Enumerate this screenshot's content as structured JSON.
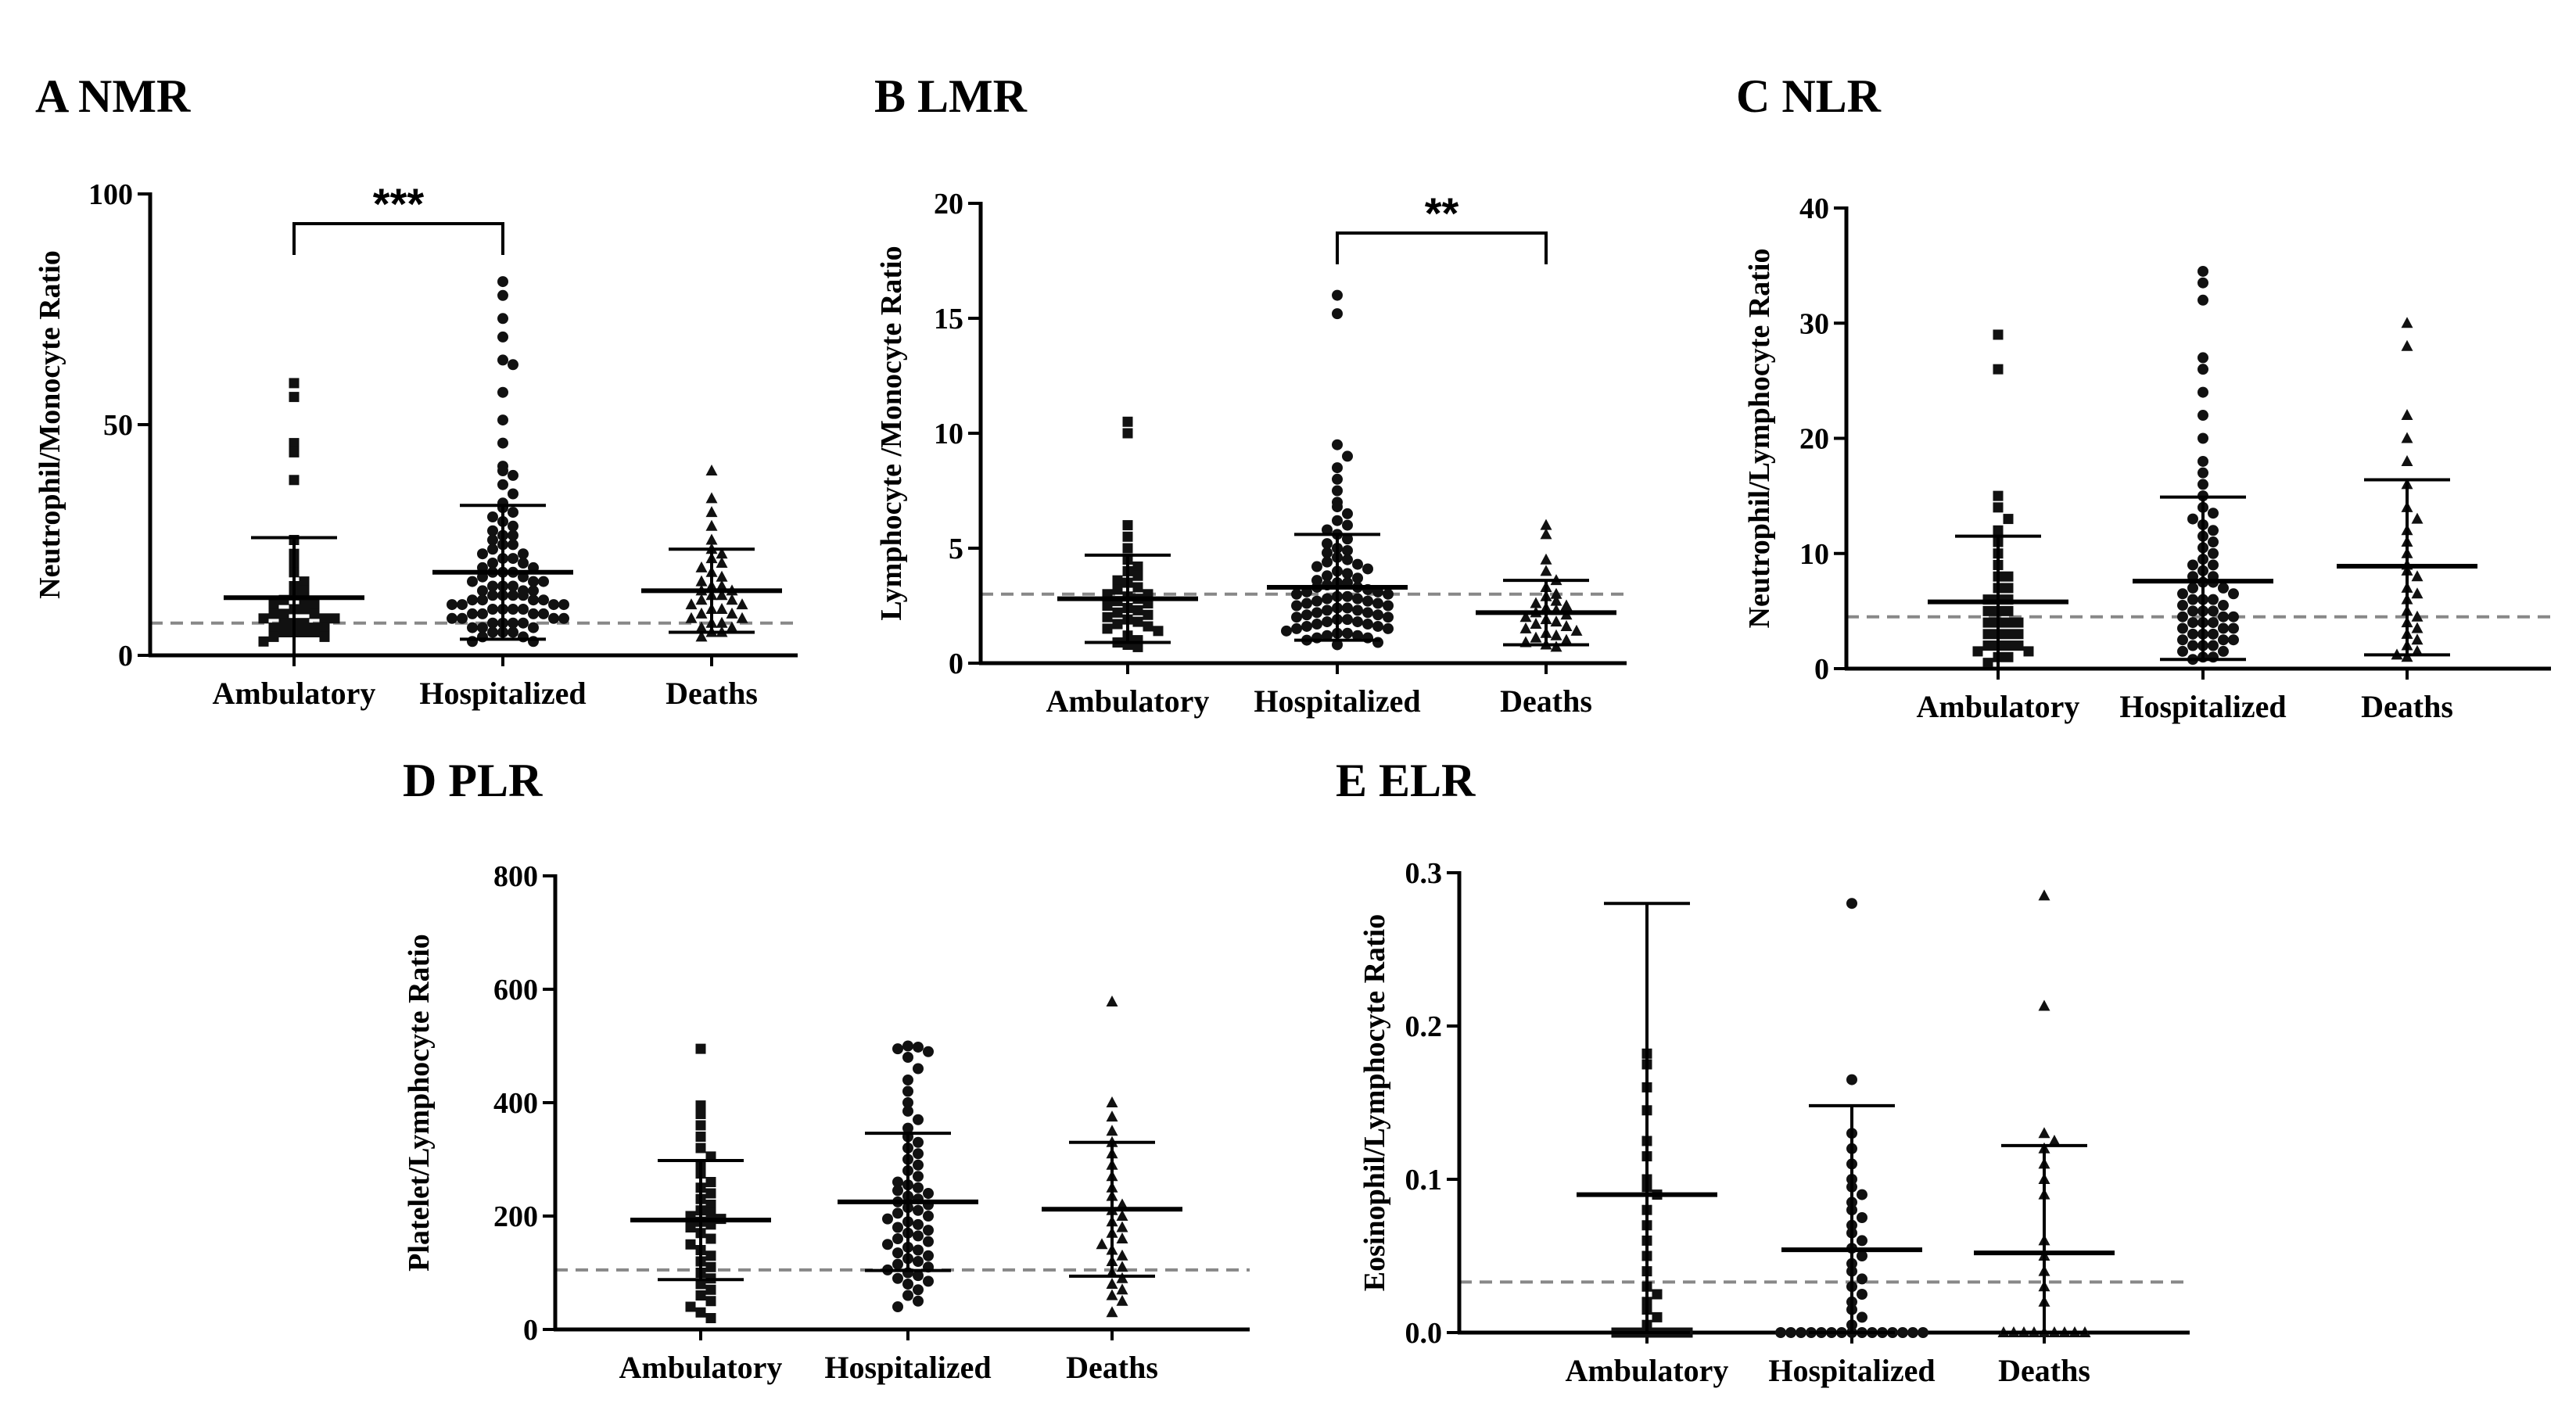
{
  "chart_data": [
    {
      "id": "nmr",
      "type": "scatter",
      "title": "A NMR",
      "ylabel": "Neutrophil/Monocyte Ratio",
      "ylim": [
        0,
        100
      ],
      "yticks": [
        0,
        50,
        100
      ],
      "reference_line": 7,
      "categories": [
        "Ambulatory",
        "Hospitalized",
        "Deaths"
      ],
      "markers": [
        "square",
        "circle",
        "triangle"
      ],
      "summary": [
        {
          "mean": 12.5,
          "upper": 25.5,
          "lower": 0
        },
        {
          "mean": 18,
          "upper": 32.5,
          "lower": 3.5
        },
        {
          "mean": 14,
          "upper": 23,
          "lower": 5
        }
      ],
      "series": [
        {
          "name": "Ambulatory",
          "values": [
            59,
            56,
            46,
            44,
            38,
            25,
            22,
            20,
            18,
            16,
            15,
            14,
            13,
            12,
            12,
            11,
            11,
            10,
            10,
            9,
            9,
            9,
            8,
            8,
            8,
            7,
            7,
            7,
            6,
            6,
            6,
            5,
            5,
            5,
            5,
            4,
            4,
            3
          ]
        },
        {
          "name": "Hospitalized",
          "values": [
            81,
            78,
            73,
            69,
            64,
            63,
            57,
            51,
            46,
            41,
            40,
            39,
            37,
            35,
            33,
            32,
            31,
            30,
            29,
            28,
            27,
            26,
            26,
            25,
            24,
            24,
            23,
            22,
            22,
            21,
            21,
            20,
            20,
            19,
            19,
            18,
            18,
            18,
            17,
            17,
            16,
            16,
            16,
            15,
            15,
            15,
            14,
            14,
            14,
            13,
            13,
            13,
            13,
            12,
            12,
            12,
            12,
            11,
            11,
            11,
            11,
            10,
            10,
            10,
            10,
            9,
            9,
            9,
            9,
            8,
            8,
            8,
            8,
            7,
            7,
            7,
            7,
            6,
            6,
            6,
            5,
            5,
            5,
            4,
            4,
            3,
            3
          ]
        },
        {
          "name": "Deaths",
          "values": [
            40,
            34,
            31,
            28,
            25,
            23,
            22,
            21,
            20,
            19,
            18,
            17,
            16,
            15,
            15,
            14,
            14,
            13,
            13,
            12,
            12,
            11,
            11,
            10,
            10,
            9,
            9,
            8,
            8,
            7,
            7,
            6,
            6,
            5,
            5,
            4
          ]
        }
      ],
      "significance": [
        {
          "from": 0,
          "to": 1,
          "label": "***"
        }
      ]
    },
    {
      "id": "lmr",
      "type": "scatter",
      "title": "B LMR",
      "ylabel": "Lymphocyte /Monocyte Ratio",
      "ylim": [
        0,
        20
      ],
      "yticks": [
        0,
        5,
        10,
        15,
        20
      ],
      "reference_line": 3,
      "categories": [
        "Ambulatory",
        "Hospitalized",
        "Deaths"
      ],
      "markers": [
        "square",
        "circle",
        "triangle"
      ],
      "summary": [
        {
          "mean": 2.8,
          "upper": 4.7,
          "lower": 0.9
        },
        {
          "mean": 3.3,
          "upper": 5.6,
          "lower": 1
        },
        {
          "mean": 2.2,
          "upper": 3.6,
          "lower": 0.8
        }
      ],
      "series": [
        {
          "name": "Ambulatory",
          "values": [
            10.5,
            10,
            6,
            5.5,
            5,
            4.5,
            4.2,
            4,
            3.8,
            3.6,
            3.5,
            3.3,
            3.2,
            3,
            3,
            2.9,
            2.8,
            2.7,
            2.6,
            2.5,
            2.4,
            2.3,
            2.2,
            2.1,
            2,
            1.9,
            1.8,
            1.7,
            1.6,
            1.5,
            1.4,
            1.2,
            1,
            0.9,
            0.8,
            0.7
          ]
        },
        {
          "name": "Hospitalized",
          "values": [
            16,
            15.2,
            9.5,
            9,
            8.5,
            8,
            7.5,
            7,
            6.8,
            6.5,
            6.2,
            6,
            5.8,
            5.6,
            5.4,
            5.2,
            5,
            4.9,
            4.8,
            4.6,
            4.5,
            4.4,
            4.3,
            4.2,
            4.1,
            4,
            3.9,
            3.8,
            3.7,
            3.6,
            3.5,
            3.5,
            3.4,
            3.3,
            3.3,
            3.2,
            3.1,
            3.1,
            3,
            3,
            2.9,
            2.9,
            2.8,
            2.8,
            2.7,
            2.7,
            2.6,
            2.6,
            2.5,
            2.5,
            2.4,
            2.4,
            2.3,
            2.3,
            2.2,
            2.2,
            2.1,
            2.1,
            2,
            2,
            1.9,
            1.9,
            1.8,
            1.8,
            1.7,
            1.7,
            1.6,
            1.6,
            1.5,
            1.5,
            1.4,
            1.3,
            1.3,
            1.2,
            1.2,
            1.1,
            1.1,
            1,
            0.9,
            0.8
          ]
        },
        {
          "name": "Deaths",
          "values": [
            6,
            5.6,
            4.5,
            4,
            3.6,
            3.3,
            3,
            2.9,
            2.7,
            2.6,
            2.5,
            2.4,
            2.3,
            2.2,
            2.1,
            2,
            1.9,
            1.8,
            1.7,
            1.6,
            1.5,
            1.4,
            1.3,
            1.2,
            1.1,
            1,
            0.9,
            0.8,
            0.7
          ]
        }
      ],
      "significance": [
        {
          "from": 1,
          "to": 2,
          "label": "**"
        }
      ]
    },
    {
      "id": "nlr",
      "type": "scatter",
      "title": "C NLR",
      "ylabel": "Neutrophil/Lymphocyte Ratio",
      "ylim": [
        0,
        40
      ],
      "yticks": [
        0,
        10,
        20,
        30,
        40
      ],
      "reference_line": 4.5,
      "categories": [
        "Ambulatory",
        "Hospitalized",
        "Deaths"
      ],
      "markers": [
        "square",
        "circle",
        "triangle"
      ],
      "summary": [
        {
          "mean": 5.8,
          "upper": 11.5,
          "lower": 0
        },
        {
          "mean": 7.6,
          "upper": 14.9,
          "lower": 0.8
        },
        {
          "mean": 8.9,
          "upper": 16.4,
          "lower": 1.2
        }
      ],
      "series": [
        {
          "name": "Ambulatory",
          "values": [
            29,
            26,
            15,
            14,
            13,
            12,
            11,
            10,
            9,
            8,
            8,
            7,
            7,
            6,
            6,
            6,
            5,
            5,
            5,
            4,
            4,
            4,
            4,
            3,
            3,
            3,
            3,
            2,
            2,
            2,
            2,
            1.5,
            1.5,
            1,
            1,
            0.5
          ]
        },
        {
          "name": "Hospitalized",
          "values": [
            34.5,
            33.5,
            32,
            27,
            26,
            24,
            22,
            20,
            18,
            17,
            16,
            15,
            14,
            13.5,
            13,
            12.5,
            12,
            11.5,
            11,
            10.5,
            10,
            9.5,
            9,
            9,
            8.5,
            8,
            8,
            7.5,
            7.5,
            7,
            7,
            6.5,
            6.5,
            6,
            6,
            6,
            5.5,
            5.5,
            5,
            5,
            5,
            4.5,
            4.5,
            4.5,
            4,
            4,
            4,
            3.5,
            3.5,
            3.5,
            3,
            3,
            3,
            2.5,
            2.5,
            2.5,
            2,
            2,
            2,
            1.5,
            1.5,
            1,
            1,
            0.8
          ]
        },
        {
          "name": "Deaths",
          "values": [
            30,
            28,
            22,
            20,
            18,
            16,
            14,
            13,
            12,
            11,
            10,
            9,
            8.5,
            8,
            7,
            6.5,
            6,
            5,
            4.5,
            4,
            3.5,
            3,
            2.5,
            2,
            1.5,
            1.2,
            1
          ]
        }
      ],
      "significance": []
    },
    {
      "id": "plr",
      "type": "scatter",
      "title": "D PLR",
      "ylabel": "Platelet/Lymphocyte  Ratio",
      "ylim": [
        0,
        800
      ],
      "yticks": [
        0,
        200,
        400,
        600,
        800
      ],
      "reference_line": 105,
      "categories": [
        "Ambulatory",
        "Hospitalized",
        "Deaths"
      ],
      "markers": [
        "square",
        "circle",
        "triangle"
      ],
      "summary": [
        {
          "mean": 193,
          "upper": 298,
          "lower": 88
        },
        {
          "mean": 225,
          "upper": 346,
          "lower": 104
        },
        {
          "mean": 212,
          "upper": 330,
          "lower": 94
        }
      ],
      "series": [
        {
          "name": "Ambulatory",
          "values": [
            495,
            395,
            380,
            360,
            340,
            320,
            305,
            290,
            275,
            260,
            250,
            240,
            230,
            220,
            210,
            205,
            200,
            195,
            190,
            185,
            180,
            170,
            160,
            150,
            140,
            130,
            120,
            110,
            100,
            90,
            80,
            70,
            60,
            50,
            40,
            30,
            20
          ]
        },
        {
          "name": "Hospitalized",
          "values": [
            500,
            498,
            495,
            490,
            480,
            460,
            440,
            420,
            400,
            385,
            370,
            355,
            340,
            330,
            320,
            310,
            300,
            290,
            280,
            270,
            260,
            255,
            250,
            245,
            240,
            235,
            230,
            225,
            220,
            215,
            210,
            205,
            200,
            195,
            190,
            185,
            180,
            175,
            170,
            165,
            160,
            155,
            150,
            145,
            140,
            135,
            130,
            125,
            120,
            115,
            110,
            105,
            100,
            95,
            90,
            85,
            80,
            70,
            60,
            50,
            40
          ]
        },
        {
          "name": "Deaths",
          "values": [
            578,
            400,
            375,
            350,
            330,
            310,
            290,
            270,
            250,
            235,
            220,
            210,
            200,
            190,
            180,
            170,
            160,
            150,
            140,
            130,
            120,
            110,
            100,
            90,
            80,
            70,
            60,
            50,
            30
          ]
        }
      ],
      "significance": []
    },
    {
      "id": "elr",
      "type": "scatter",
      "title": "E ELR",
      "ylabel": "Eosinophil/Lymphocyte Ratio",
      "ylim": [
        0,
        0.3
      ],
      "yticks": [
        0.0,
        0.1,
        0.2,
        0.3
      ],
      "ytick_decimals": 1,
      "reference_line": 0.033,
      "categories": [
        "Ambulatory",
        "Hospitalized",
        "Deaths"
      ],
      "markers": [
        "square",
        "circle",
        "triangle"
      ],
      "summary": [
        {
          "mean": 0.09,
          "upper": 0.28,
          "lower": 0
        },
        {
          "mean": 0.054,
          "upper": 0.148,
          "lower": 0
        },
        {
          "mean": 0.052,
          "upper": 0.122,
          "lower": 0
        }
      ],
      "series": [
        {
          "name": "Ambulatory",
          "values": [
            0.182,
            0.175,
            0.16,
            0.145,
            0.125,
            0.115,
            0.1,
            0.095,
            0.09,
            0.08,
            0.07,
            0.06,
            0.05,
            0.04,
            0.03,
            0.025,
            0.02,
            0.015,
            0.01,
            0.005,
            0,
            0,
            0,
            0,
            0,
            0,
            0,
            0
          ]
        },
        {
          "name": "Hospitalized",
          "values": [
            0.28,
            0.165,
            0.13,
            0.12,
            0.11,
            0.1,
            0.095,
            0.09,
            0.085,
            0.08,
            0.075,
            0.07,
            0.065,
            0.06,
            0.055,
            0.05,
            0.045,
            0.04,
            0.035,
            0.03,
            0.025,
            0.02,
            0.015,
            0.01,
            0.005,
            0,
            0,
            0,
            0,
            0,
            0,
            0,
            0,
            0,
            0,
            0,
            0,
            0,
            0,
            0
          ]
        },
        {
          "name": "Deaths",
          "values": [
            0.285,
            0.213,
            0.13,
            0.125,
            0.12,
            0.11,
            0.1,
            0.09,
            0.06,
            0.05,
            0.04,
            0.03,
            0.02,
            0,
            0,
            0,
            0,
            0,
            0,
            0,
            0,
            0
          ]
        }
      ],
      "significance": []
    }
  ]
}
